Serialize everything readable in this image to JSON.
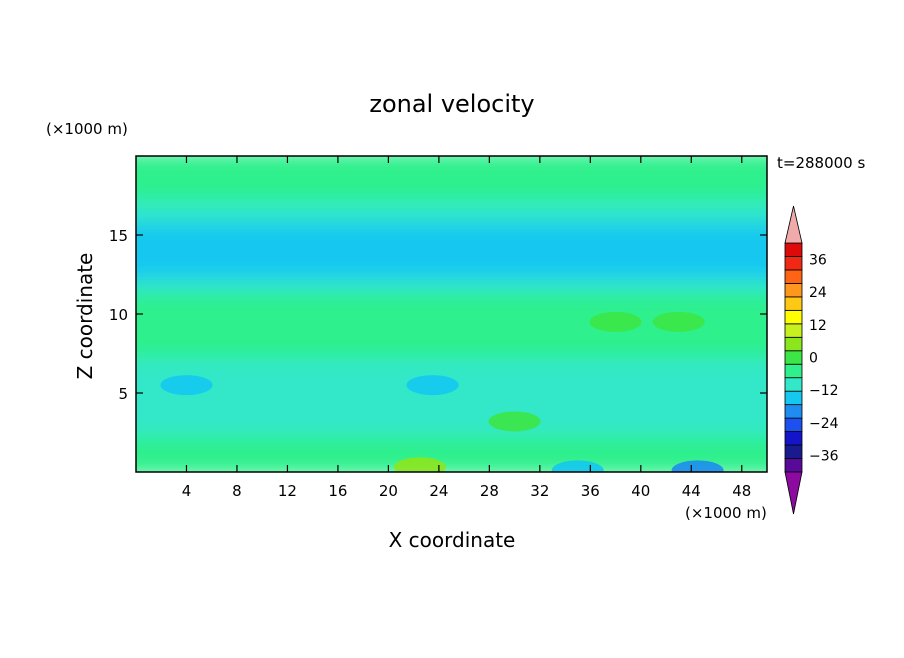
{
  "chart_data": {
    "type": "heatmap",
    "title": "zonal velocity",
    "time_label": "t=288000 s",
    "xlabel": "X coordinate",
    "ylabel": "Z coordinate",
    "x_unit": "(×1000 m)",
    "y_unit": "(×1000 m)",
    "xlim": [
      0,
      50
    ],
    "ylim": [
      0,
      20
    ],
    "xticks": [
      4,
      8,
      12,
      16,
      20,
      24,
      28,
      32,
      36,
      40,
      44,
      48
    ],
    "yticks": [
      5,
      10,
      15
    ],
    "colorbar": {
      "min": -42,
      "max": 42,
      "step": 6,
      "tick_values": [
        36,
        24,
        12,
        0,
        -12,
        -24,
        -36
      ],
      "tick_labels": [
        "36",
        "24",
        "12",
        "0",
        "−12",
        "−24",
        "−36"
      ],
      "colors": [
        "#5a0a9a",
        "#1a1a90",
        "#1414c8",
        "#1e50f0",
        "#1e8cf0",
        "#14c8f0",
        "#32e8c8",
        "#2ef08c",
        "#3ce646",
        "#8ce61e",
        "#c8f01e",
        "#ffff00",
        "#ffc814",
        "#ff961e",
        "#ff6414",
        "#f02814",
        "#dc0a0a"
      ],
      "under_color": "#8c0aa0",
      "over_color": "#f0aaaa"
    },
    "bands": [
      {
        "z_range": [
          0,
          1
        ],
        "value": 5
      },
      {
        "z_range": [
          1,
          2.5
        ],
        "value": 0
      },
      {
        "z_range": [
          2.5,
          7.5
        ],
        "value": -6
      },
      {
        "z_range": [
          7.5,
          10.5
        ],
        "value": 4
      },
      {
        "z_range": [
          10.5,
          11.5
        ],
        "value": 0
      },
      {
        "z_range": [
          11.5,
          12.5
        ],
        "value": -5
      },
      {
        "z_range": [
          12.5,
          16
        ],
        "value": -10
      },
      {
        "z_range": [
          16,
          17.5
        ],
        "value": -6
      },
      {
        "z_range": [
          17.5,
          20
        ],
        "value": 0
      }
    ],
    "features": [
      {
        "x": 22.5,
        "z": 0.3,
        "value": 12
      },
      {
        "x": 44.5,
        "z": 0.1,
        "value": -15
      },
      {
        "x": 35,
        "z": 0.1,
        "value": -12
      },
      {
        "x": 38,
        "z": 9.5,
        "value": 9
      },
      {
        "x": 43,
        "z": 9.5,
        "value": 10
      },
      {
        "x": 23.5,
        "z": 5.5,
        "value": -11
      },
      {
        "x": 4,
        "z": 5.5,
        "value": -10
      },
      {
        "x": 30,
        "z": 3.2,
        "value": 8
      }
    ]
  }
}
